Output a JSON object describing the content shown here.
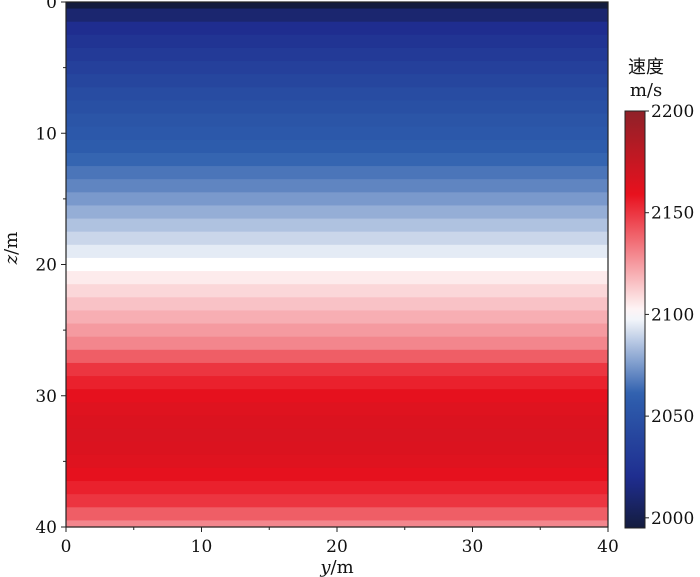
{
  "chart_data": {
    "type": "heatmap",
    "title": "",
    "xlabel_italic": "y",
    "xlabel_unit": "/m",
    "ylabel_italic": "z",
    "ylabel_unit": "/m",
    "xlim": [
      0,
      40
    ],
    "ylim": [
      0,
      40
    ],
    "y_inverted": true,
    "x_ticks": [
      "0",
      "10",
      "20",
      "30",
      "40"
    ],
    "y_ticks": [
      "0",
      "10",
      "20",
      "30",
      "40"
    ],
    "layers": {
      "z_depth_m": [
        0,
        1,
        2,
        3,
        4,
        5,
        6,
        7,
        8,
        9,
        10,
        11,
        12,
        13,
        14,
        15,
        16,
        17,
        18,
        19,
        20,
        21,
        22,
        23,
        24,
        25,
        26,
        27,
        28,
        29,
        30,
        31,
        32,
        33,
        34,
        35,
        36,
        37,
        38,
        39,
        40
      ],
      "velocity_m_s": [
        1995,
        2010,
        2020,
        2025,
        2030,
        2035,
        2040,
        2045,
        2048,
        2052,
        2055,
        2058,
        2062,
        2066,
        2070,
        2075,
        2080,
        2085,
        2090,
        2095,
        2100,
        2105,
        2110,
        2115,
        2120,
        2125,
        2130,
        2140,
        2150,
        2155,
        2160,
        2163,
        2165,
        2166,
        2165,
        2163,
        2160,
        2155,
        2150,
        2140,
        2130
      ]
    },
    "colorbar": {
      "title_line1": "速度",
      "title_line2": "m/s",
      "range": [
        1995,
        2200
      ],
      "ticks": [
        "2000",
        "2050",
        "2100",
        "2150",
        "2200"
      ],
      "colormap": "blue-white-red",
      "stops": [
        "#141c3e",
        "#1f2d8f",
        "#2e5fae",
        "#ffffff",
        "#e8111e",
        "#8f2128"
      ]
    }
  }
}
